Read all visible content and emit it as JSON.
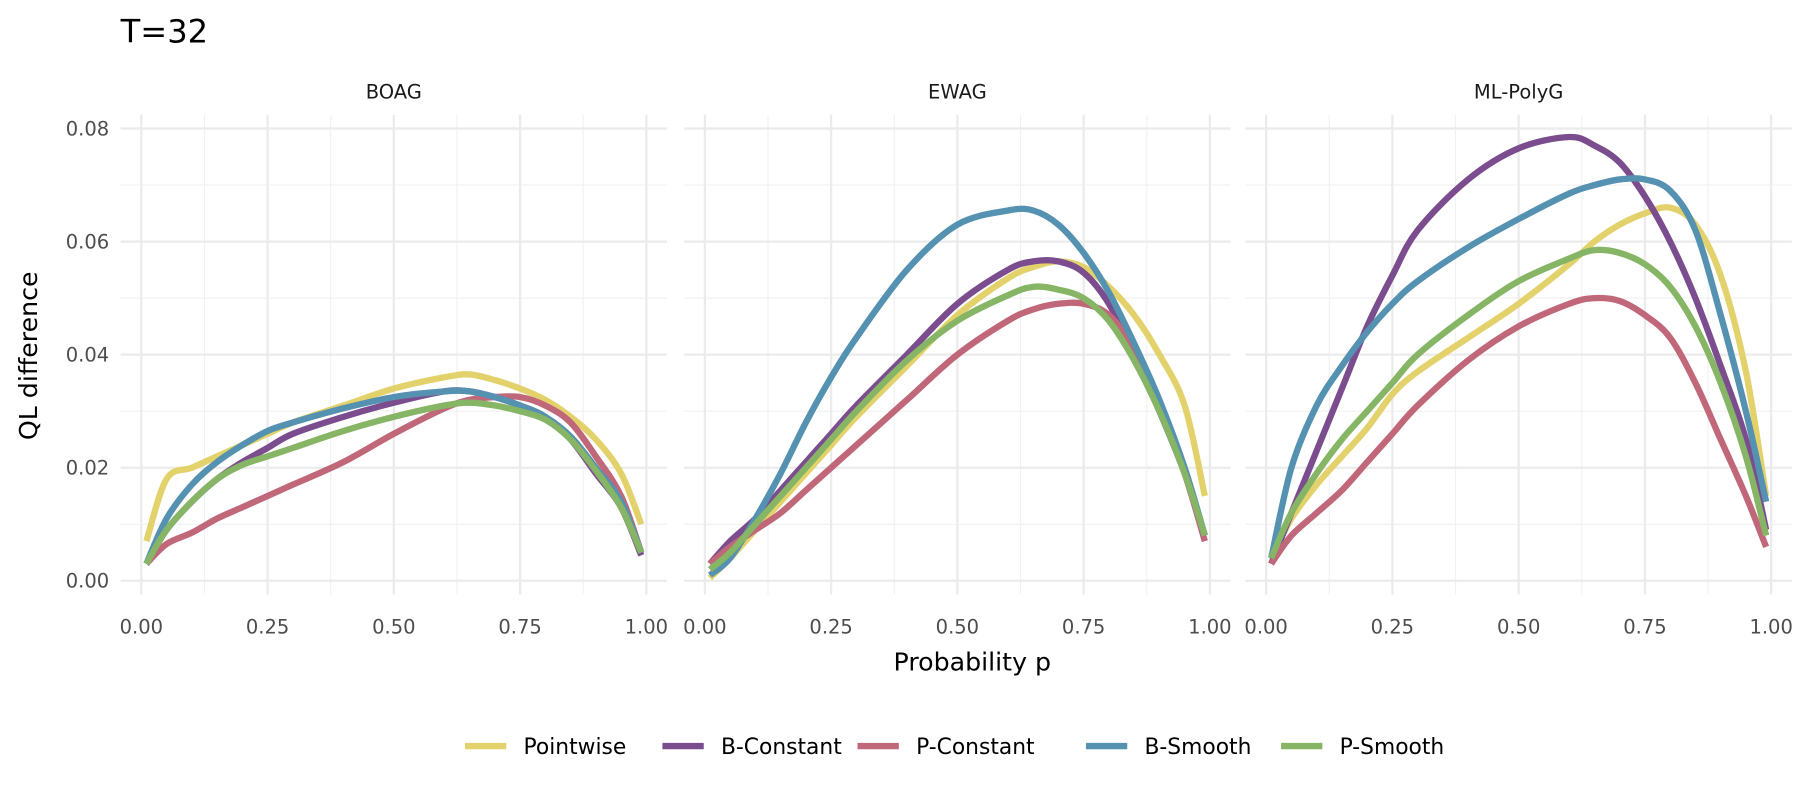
{
  "chart_data": {
    "type": "line",
    "title": "T=32",
    "xlabel": "Probability p",
    "ylabel": "QL difference",
    "xlim": [
      0,
      1
    ],
    "ylim": [
      0,
      0.08
    ],
    "x_ticks": [
      "0.00",
      "0.25",
      "0.50",
      "0.75",
      "1.00"
    ],
    "y_ticks": [
      "0.00",
      "0.02",
      "0.04",
      "0.06",
      "0.08"
    ],
    "grid": true,
    "legend_position": "bottom",
    "x": [
      0.01,
      0.05,
      0.1,
      0.15,
      0.2,
      0.25,
      0.3,
      0.4,
      0.5,
      0.6,
      0.65,
      0.7,
      0.75,
      0.8,
      0.85,
      0.9,
      0.95,
      0.99
    ],
    "series_styles": [
      {
        "name": "Pointwise",
        "color": "#E3D26B"
      },
      {
        "name": "B-Constant",
        "color": "#7B4D8E"
      },
      {
        "name": "P-Constant",
        "color": "#C0677A"
      },
      {
        "name": "B-Smooth",
        "color": "#5591B0"
      },
      {
        "name": "P-Smooth",
        "color": "#86B565"
      }
    ],
    "panels": [
      {
        "name": "BOAG",
        "series": [
          {
            "name": "Pointwise",
            "values": [
              0.007,
              0.018,
              0.02,
              0.022,
              0.024,
              0.026,
              0.028,
              0.031,
              0.034,
              0.036,
              0.0365,
              0.0355,
              0.034,
              0.032,
              0.029,
              0.025,
              0.019,
              0.01
            ]
          },
          {
            "name": "B-Constant",
            "values": [
              0.003,
              0.009,
              0.014,
              0.018,
              0.021,
              0.0235,
              0.026,
              0.029,
              0.0315,
              0.0335,
              0.0335,
              0.0325,
              0.031,
              0.029,
              0.025,
              0.019,
              0.013,
              0.0045
            ]
          },
          {
            "name": "P-Constant",
            "values": [
              0.003,
              0.0065,
              0.0085,
              0.011,
              0.013,
              0.015,
              0.017,
              0.021,
              0.026,
              0.0305,
              0.032,
              0.0325,
              0.0325,
              0.031,
              0.028,
              0.022,
              0.015,
              0.005
            ]
          },
          {
            "name": "B-Smooth",
            "values": [
              0.003,
              0.011,
              0.017,
              0.021,
              0.024,
              0.0265,
              0.028,
              0.0305,
              0.0325,
              0.0335,
              0.0335,
              0.0325,
              0.031,
              0.029,
              0.0255,
              0.02,
              0.014,
              0.005
            ]
          },
          {
            "name": "P-Smooth",
            "values": [
              0.003,
              0.009,
              0.014,
              0.018,
              0.0205,
              0.022,
              0.0235,
              0.0265,
              0.029,
              0.031,
              0.0315,
              0.031,
              0.03,
              0.0285,
              0.025,
              0.0195,
              0.013,
              0.005
            ]
          }
        ]
      },
      {
        "name": "EWAG",
        "series": [
          {
            "name": "Pointwise",
            "values": [
              0.0005,
              0.004,
              0.009,
              0.014,
              0.019,
              0.024,
              0.029,
              0.038,
              0.047,
              0.0535,
              0.0555,
              0.0565,
              0.0555,
              0.052,
              0.047,
              0.04,
              0.031,
              0.015
            ]
          },
          {
            "name": "B-Constant",
            "values": [
              0.003,
              0.007,
              0.011,
              0.016,
              0.021,
              0.026,
              0.031,
              0.04,
              0.049,
              0.055,
              0.0565,
              0.0565,
              0.0545,
              0.049,
              0.04,
              0.03,
              0.019,
              0.008
            ]
          },
          {
            "name": "P-Constant",
            "values": [
              0.003,
              0.006,
              0.009,
              0.012,
              0.016,
              0.02,
              0.024,
              0.032,
              0.04,
              0.046,
              0.048,
              0.049,
              0.049,
              0.047,
              0.041,
              0.031,
              0.019,
              0.007
            ]
          },
          {
            "name": "B-Smooth",
            "values": [
              0.001,
              0.004,
              0.011,
              0.019,
              0.028,
              0.036,
              0.043,
              0.055,
              0.063,
              0.0655,
              0.0655,
              0.063,
              0.058,
              0.051,
              0.042,
              0.032,
              0.02,
              0.008
            ]
          },
          {
            "name": "P-Smooth",
            "values": [
              0.002,
              0.005,
              0.01,
              0.015,
              0.02,
              0.025,
              0.03,
              0.039,
              0.046,
              0.0505,
              0.052,
              0.0515,
              0.05,
              0.046,
              0.039,
              0.03,
              0.019,
              0.008
            ]
          }
        ]
      },
      {
        "name": "ML-PolyG",
        "series": [
          {
            "name": "Pointwise",
            "values": [
              0.004,
              0.011,
              0.017,
              0.022,
              0.027,
              0.033,
              0.037,
              0.043,
              0.049,
              0.056,
              0.06,
              0.063,
              0.065,
              0.066,
              0.063,
              0.054,
              0.037,
              0.015
            ]
          },
          {
            "name": "B-Constant",
            "values": [
              0.003,
              0.012,
              0.023,
              0.034,
              0.045,
              0.054,
              0.062,
              0.071,
              0.0765,
              0.0785,
              0.077,
              0.074,
              0.068,
              0.06,
              0.05,
              0.038,
              0.025,
              0.009
            ]
          },
          {
            "name": "P-Constant",
            "values": [
              0.003,
              0.008,
              0.012,
              0.016,
              0.021,
              0.026,
              0.031,
              0.039,
              0.045,
              0.049,
              0.05,
              0.0495,
              0.047,
              0.043,
              0.035,
              0.025,
              0.015,
              0.006
            ]
          },
          {
            "name": "B-Smooth",
            "values": [
              0.004,
              0.02,
              0.031,
              0.038,
              0.044,
              0.049,
              0.053,
              0.059,
              0.064,
              0.0685,
              0.07,
              0.071,
              0.071,
              0.069,
              0.062,
              0.047,
              0.03,
              0.014
            ]
          },
          {
            "name": "P-Smooth",
            "values": [
              0.004,
              0.012,
              0.019,
              0.025,
              0.03,
              0.035,
              0.04,
              0.047,
              0.053,
              0.057,
              0.0585,
              0.058,
              0.056,
              0.052,
              0.045,
              0.035,
              0.022,
              0.008
            ]
          }
        ]
      }
    ]
  }
}
